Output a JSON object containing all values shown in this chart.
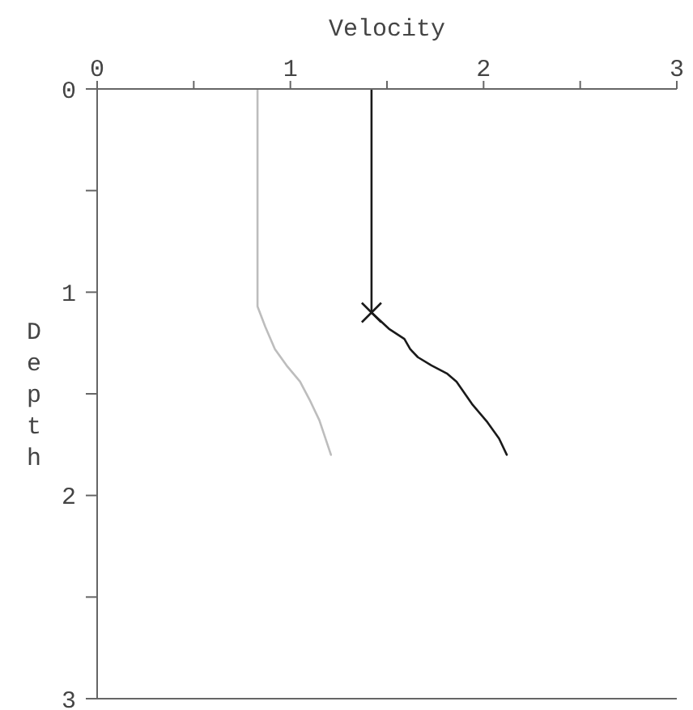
{
  "chart_data": {
    "type": "line",
    "xlabel": "Velocity",
    "ylabel": "Depth",
    "xlim": [
      0,
      3
    ],
    "xticks": [
      0,
      {
        "value": 0.5,
        "label": null
      },
      1,
      {
        "value": 1.5,
        "label": null
      },
      2,
      {
        "value": 2.5,
        "label": null
      },
      3
    ],
    "ylim": [
      3,
      0
    ],
    "yticks": [
      0,
      {
        "value": 0.5,
        "label": null
      },
      1,
      {
        "value": 1.5,
        "label": null
      },
      2,
      {
        "value": 2.5,
        "label": null
      },
      3
    ],
    "marker": "none",
    "line_style": "solid",
    "series": [
      {
        "color": "#bdbdbd",
        "x": [
          0.83,
          0.83,
          0.87,
          0.92,
          0.98,
          1.05,
          1.1,
          1.15,
          1.21
        ],
        "values": [
          0,
          1.07,
          1.17,
          1.28,
          1.36,
          1.44,
          1.53,
          1.63,
          1.8
        ]
      },
      {
        "color": "#1a1a1a",
        "x": [
          1.42,
          1.42,
          1.51,
          1.59,
          1.62,
          1.66,
          1.73,
          1.81,
          1.86,
          1.94,
          2.02,
          2.08,
          2.12
        ],
        "values": [
          0,
          1.1,
          1.18,
          1.23,
          1.28,
          1.32,
          1.36,
          1.4,
          1.44,
          1.55,
          1.64,
          1.72,
          1.8
        ]
      },
      {
        "type": "scatter",
        "marker": "cross",
        "color": "#1a1a1a",
        "x": [
          1.42
        ],
        "values": [
          1.1
        ]
      }
    ]
  }
}
